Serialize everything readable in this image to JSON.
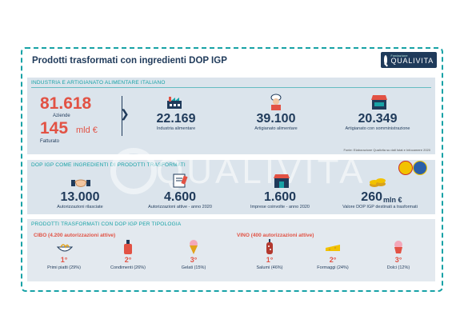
{
  "title": "Prodotti trasformati con ingredienti DOP IGP",
  "logo": {
    "small": "Fondazione",
    "big": "QUALIVITA"
  },
  "section1": {
    "header": "INDUSTRIA E ARTIGIANATO ALIMENTARE ITALIANO",
    "aziende": {
      "value": "81.618",
      "label": "Aziende"
    },
    "fatturato": {
      "value": "145",
      "unit": "mld €",
      "label": "Fatturato"
    },
    "stats": [
      {
        "value": "22.169",
        "label": "Industria alimentare",
        "icon": "factory-icon"
      },
      {
        "value": "39.100",
        "label": "Artigianato alimentare",
        "icon": "baker-icon"
      },
      {
        "value": "20.349",
        "label": "Artigianato con somministrazione",
        "icon": "shop-icon"
      }
    ],
    "note": "Fonte: Elaborazione Qualivita su dati Istat e Infocamere 2020"
  },
  "section2": {
    "header": "DOP IGP COME INGREDIENTI DI PRODOTTI TRASFORMATI",
    "stats": [
      {
        "value": "13.000",
        "label": "Autorizzazioni rilasciate",
        "icon": "handshake-icon"
      },
      {
        "value": "4.600",
        "label": "Autorizzazioni attive - anno 2020",
        "icon": "ledger-icon"
      },
      {
        "value": "1.600",
        "label": "Imprese coinvolte - anno 2020",
        "icon": "store-icon"
      },
      {
        "value": "260",
        "unit": "mln €",
        "label": "Valore DOP IGP destinati a trasformati",
        "icon": "coins-icon"
      }
    ]
  },
  "section3": {
    "header": "PRODOTTI TRASFORMATI CON DOP IGP PER TIPOLOGIA",
    "cibo": {
      "head": "CIBO (4.200 autorizzazioni attive)",
      "items": [
        {
          "rank": "1°",
          "label": "Primi piatti (29%)",
          "icon": "pasta-icon"
        },
        {
          "rank": "2°",
          "label": "Condimenti (26%)",
          "icon": "sauce-icon"
        },
        {
          "rank": "3°",
          "label": "Gelati (15%)",
          "icon": "icecream-icon"
        }
      ]
    },
    "vino": {
      "head": "VINO (400 autorizzazioni attive)",
      "items": [
        {
          "rank": "1°",
          "label": "Salumi (46%)",
          "icon": "salami-icon"
        },
        {
          "rank": "2°",
          "label": "Formaggi (24%)",
          "icon": "cheese-icon"
        },
        {
          "rank": "3°",
          "label": "Dolci (12%)",
          "icon": "cupcake-icon"
        }
      ]
    }
  },
  "watermark": "QUALIVITA",
  "colors": {
    "accent": "#17a2a6",
    "red": "#e25244",
    "navy": "#1f3a5a",
    "panel": "#dbe4ec"
  }
}
